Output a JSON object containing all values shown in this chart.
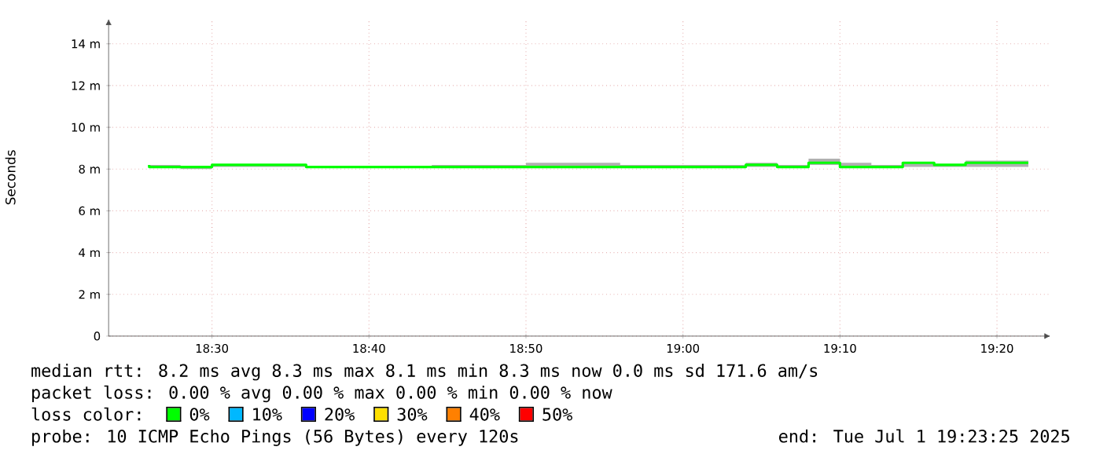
{
  "chart_data": {
    "type": "step",
    "ylabel": "Seconds",
    "x": [
      "2025-07-01T18:26",
      "2025-07-01T18:28",
      "2025-07-01T18:30",
      "2025-07-01T18:32",
      "2025-07-01T18:34",
      "2025-07-01T18:36",
      "2025-07-01T18:38",
      "2025-07-01T18:40",
      "2025-07-01T18:42",
      "2025-07-01T18:44",
      "2025-07-01T18:46",
      "2025-07-01T18:48",
      "2025-07-01T18:50",
      "2025-07-01T18:52",
      "2025-07-01T18:54",
      "2025-07-01T18:56",
      "2025-07-01T18:58",
      "2025-07-01T19:00",
      "2025-07-01T19:02",
      "2025-07-01T19:04",
      "2025-07-01T19:06",
      "2025-07-01T19:08",
      "2025-07-01T19:10",
      "2025-07-01T19:12",
      "2025-07-01T19:14",
      "2025-07-01T19:16",
      "2025-07-01T19:18",
      "2025-07-01T19:20",
      "2025-07-01T19:22"
    ],
    "series": [
      {
        "name": "0%",
        "color": "#00ff00",
        "values": [
          8.2,
          8.1,
          8.1,
          8.2,
          8.2,
          8.2,
          8.1,
          8.1,
          8.1,
          8.1,
          8.1,
          8.1,
          8.1,
          8.1,
          8.1,
          8.1,
          8.1,
          8.1,
          8.1,
          8.1,
          8.2,
          8.1,
          8.3,
          8.1,
          8.1,
          8.3,
          8.2,
          8.3,
          8.3
        ],
        "lower": [
          8.1,
          8.1,
          8.0,
          8.1,
          8.1,
          8.1,
          8.1,
          8.1,
          8.1,
          8.1,
          8.1,
          8.1,
          8.1,
          8.1,
          8.1,
          8.1,
          8.1,
          8.1,
          8.1,
          8.1,
          8.1,
          8.1,
          8.2,
          8.1,
          8.1,
          8.1,
          8.1,
          8.1,
          8.1
        ],
        "upper": [
          8.3,
          8.2,
          8.1,
          8.2,
          8.2,
          8.2,
          8.1,
          8.1,
          8.1,
          8.1,
          8.2,
          8.2,
          8.2,
          8.3,
          8.3,
          8.3,
          8.2,
          8.2,
          8.2,
          8.2,
          8.3,
          8.2,
          8.5,
          8.3,
          8.2,
          8.3,
          8.2,
          8.4,
          8.4
        ]
      },
      {
        "name": "10%",
        "color": "#00b8ff",
        "values": [
          null,
          null,
          null,
          null,
          null,
          null,
          null,
          null,
          null,
          null,
          null,
          null,
          null,
          null,
          null,
          null,
          null,
          null,
          null,
          null,
          null,
          null,
          null,
          null,
          null,
          null,
          null,
          null,
          null
        ]
      },
      {
        "name": "20%",
        "color": "#0000ff",
        "values": [
          null,
          null,
          null,
          null,
          null,
          null,
          null,
          null,
          null,
          null,
          null,
          null,
          null,
          null,
          null,
          null,
          null,
          null,
          null,
          null,
          null,
          null,
          null,
          null,
          null,
          null,
          null,
          null,
          null
        ]
      },
      {
        "name": "30%",
        "color": "#ffe000",
        "values": [
          null,
          null,
          null,
          null,
          null,
          null,
          null,
          null,
          null,
          null,
          null,
          null,
          null,
          null,
          null,
          null,
          null,
          null,
          null,
          null,
          null,
          null,
          null,
          null,
          null,
          null,
          null,
          null,
          null
        ]
      },
      {
        "name": "40%",
        "color": "#ff8000",
        "values": [
          null,
          null,
          null,
          null,
          null,
          null,
          null,
          null,
          null,
          null,
          null,
          null,
          null,
          null,
          null,
          null,
          null,
          null,
          null,
          null,
          null,
          null,
          null,
          null,
          null,
          null,
          null,
          null,
          null
        ]
      },
      {
        "name": "50%",
        "color": "#ff0000",
        "values": [
          null,
          null,
          null,
          null,
          null,
          null,
          null,
          null,
          null,
          null,
          null,
          null,
          null,
          null,
          null,
          null,
          null,
          null,
          null,
          null,
          null,
          null,
          null,
          null,
          null,
          null,
          null,
          null,
          null
        ]
      }
    ],
    "xlim": [
      "2025-07-01T18:23:25",
      "2025-07-01T19:23:25"
    ],
    "xticks": [
      {
        "value": "2025-07-01T18:30",
        "label": "18:30"
      },
      {
        "value": "2025-07-01T18:40",
        "label": "18:40"
      },
      {
        "value": "2025-07-01T18:50",
        "label": "18:50"
      },
      {
        "value": "2025-07-01T19:00",
        "label": "19:00"
      },
      {
        "value": "2025-07-01T19:10",
        "label": "19:10"
      },
      {
        "value": "2025-07-01T19:20",
        "label": "19:20"
      }
    ],
    "ylim": [
      0,
      15.2
    ],
    "yticks": [
      0,
      {
        "value": 2,
        "label": "2 m"
      },
      {
        "value": 4,
        "label": "4 m"
      },
      {
        "value": 6,
        "label": "6 m"
      },
      {
        "value": 8,
        "label": "8 m"
      },
      {
        "value": 10,
        "label": "10 m"
      },
      {
        "value": 12,
        "label": "12 m"
      },
      {
        "value": 14,
        "label": "14 m"
      }
    ],
    "grid": true,
    "legend": "bottom",
    "legend_title": "loss color:",
    "annotations": [
      "median rtt:  8.2 ms avg  8.3 ms max  8.1 ms min  8.3 ms now  0.0 ms sd  171.6   am/s",
      "packet loss: 0.00 % avg  0.00 % max  0.00 % min  0.00 % now",
      "probe:       10 ICMP Echo Pings (56 Bytes) every 120s",
      "end: Tue Jul  1 19:23:25 2025"
    ]
  }
}
